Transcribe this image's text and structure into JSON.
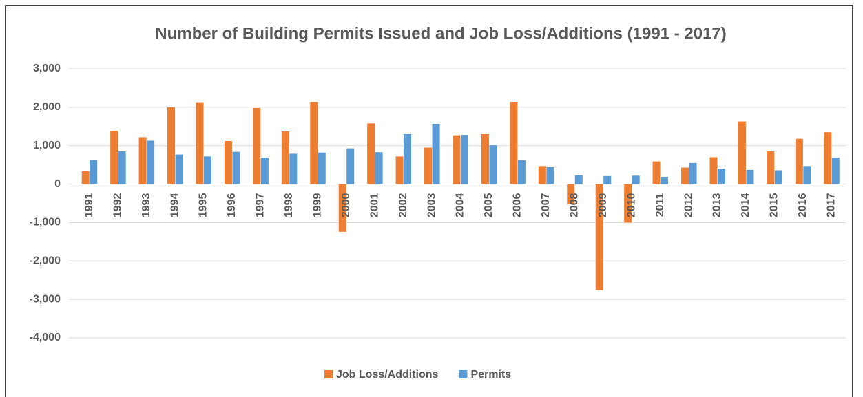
{
  "chart_data": {
    "type": "bar",
    "title": "Number of Building Permits Issued and Job Loss/Additions (1991 - 2017)",
    "categories": [
      "1991",
      "1992",
      "1993",
      "1994",
      "1995",
      "1996",
      "1997",
      "1998",
      "1999",
      "2000",
      "2001",
      "2002",
      "2003",
      "2004",
      "2005",
      "2006",
      "2007",
      "2008",
      "2009",
      "2010",
      "2011",
      "2012",
      "2013",
      "2014",
      "2015",
      "2016",
      "2017"
    ],
    "series": [
      {
        "name": "Job Loss/Additions",
        "color": "#ed7d31",
        "values": [
          340,
          1390,
          1220,
          2000,
          2130,
          1120,
          1980,
          1370,
          2140,
          -1240,
          1580,
          720,
          950,
          1270,
          1300,
          2140,
          470,
          -520,
          -2760,
          -1000,
          590,
          430,
          700,
          1630,
          850,
          1180,
          1350
        ]
      },
      {
        "name": "Permits",
        "color": "#5b9bd5",
        "values": [
          630,
          850,
          1130,
          770,
          720,
          840,
          690,
          790,
          820,
          930,
          830,
          1300,
          1570,
          1280,
          1010,
          620,
          440,
          230,
          210,
          220,
          190,
          550,
          400,
          370,
          360,
          470,
          690
        ]
      }
    ],
    "ylim": [
      -4000,
      3000
    ],
    "yticks": [
      {
        "value": -4000,
        "label": "-4,000"
      },
      {
        "value": -3000,
        "label": "-3,000"
      },
      {
        "value": -2000,
        "label": "-2,000"
      },
      {
        "value": -1000,
        "label": "-1,000"
      },
      0,
      {
        "value": 1000,
        "label": "1,000"
      },
      {
        "value": 2000,
        "label": "2,000"
      },
      {
        "value": 3000,
        "label": "3,000"
      }
    ],
    "grid": true,
    "legend": "bottom"
  }
}
